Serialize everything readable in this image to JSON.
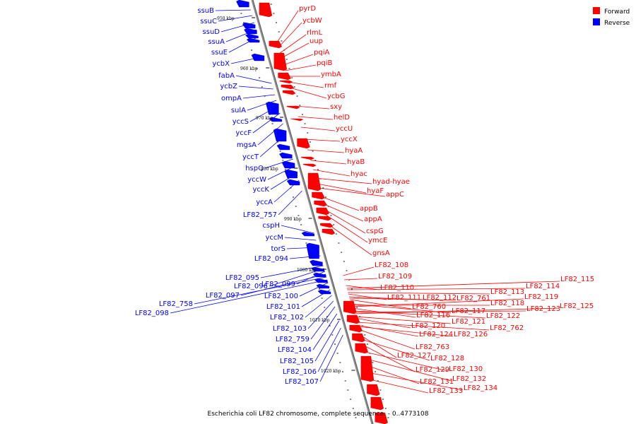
{
  "colors": {
    "forward": "#ff0000",
    "reverse": "#0000ff",
    "axis": "#8c8c8c"
  },
  "legend": {
    "forward_label": "Forward",
    "reverse_label": "Reverse"
  },
  "caption": "Escherichia coli LF82 chromosome, complete sequence. - 0..4773108",
  "scale_labels": [
    "950 kbp",
    "960 kbp",
    "970 kbp",
    "980 kbp",
    "990 kbp",
    "1000 kbp",
    "1010 kbp",
    "1020 kbp"
  ],
  "forward_genes": [
    "pyrD",
    "ycbW",
    "rlmL",
    "uup",
    "pqiA",
    "pqiB",
    "ymbA",
    "rmf",
    "ycbG",
    "sxy",
    "helD",
    "yccU",
    "yccX",
    "hyaA",
    "hyaB",
    "hyac",
    "hyad-hyae",
    "hyaF",
    "appC",
    "appB",
    "appA",
    "cspG",
    "ymcE",
    "gnsA",
    "LF82_108",
    "LF82_109",
    "LF82_110",
    "LF82_111",
    "LF82_112",
    "LF82_761",
    "LF82_113",
    "LF82_114",
    "LF82_115",
    "LF82_760",
    "LF82_117",
    "LF82_118",
    "LF82_119",
    "LF82_116",
    "LF82_122",
    "LF82_123",
    "LF82_125",
    "LF82_121",
    "LF82_120",
    "LF82_762",
    "LF82_124",
    "LF82_126",
    "LF82_763",
    "LF82_127",
    "LF82_128",
    "LF82_129",
    "LF82_130",
    "LF82_132",
    "LF82_131",
    "LF82_134",
    "LF82_133"
  ],
  "reverse_genes": [
    "ssuB",
    "ssuC",
    "ssuD",
    "ssuA",
    "ssuE",
    "ycbX",
    "fabA",
    "ycbZ",
    "ompA",
    "sulA",
    "yccS",
    "yccF",
    "mgsA",
    "yccT",
    "hspQ",
    "yccW",
    "yccK",
    "yccA",
    "LF82_757",
    "cspH",
    "yccM",
    "torS",
    "LF82_094",
    "LF82_095",
    "LF82_096",
    "LF82_099",
    "LF82_097",
    "LF82_758",
    "LF82_098",
    "LF82_100",
    "LF82_101",
    "LF82_102",
    "LF82_103",
    "LF82_759",
    "LF82_104",
    "LF82_105",
    "LF82_106",
    "LF82_107"
  ]
}
